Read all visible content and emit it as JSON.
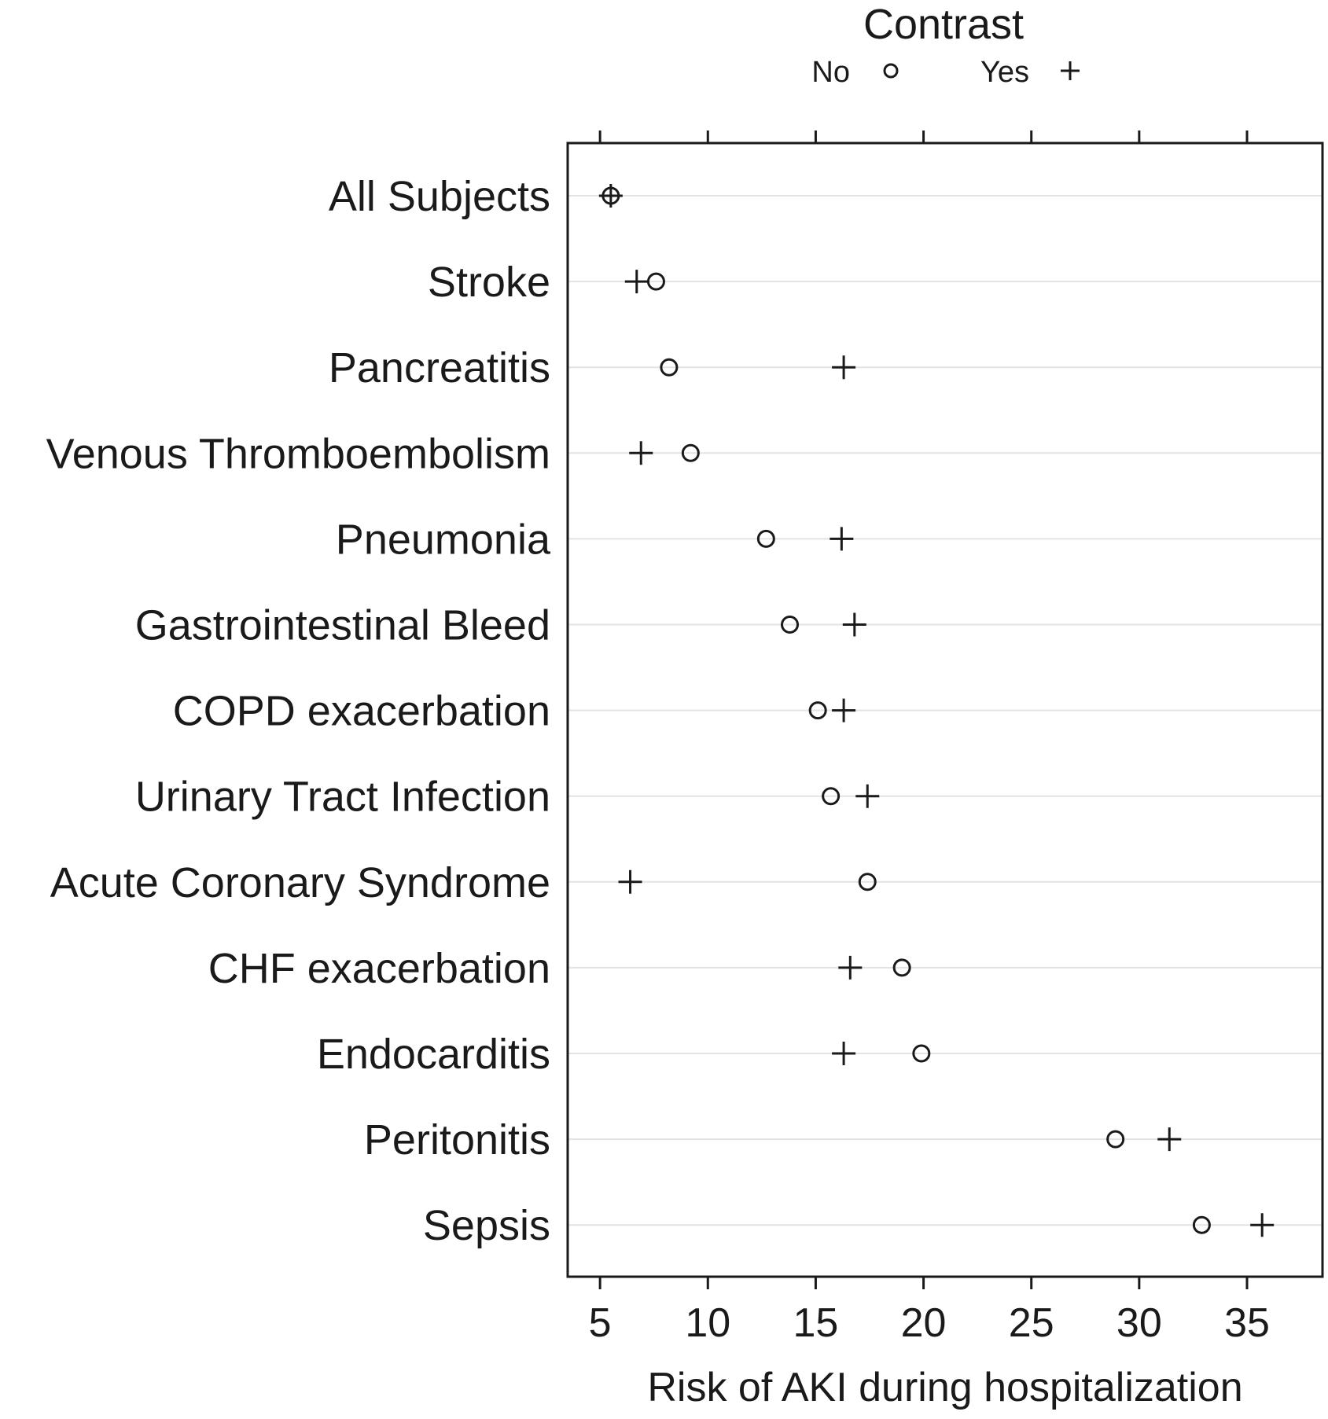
{
  "chart_data": {
    "type": "scatter",
    "subtype": "dot-plot",
    "title": "",
    "xlabel": "Risk of AKI during hospitalization",
    "ylabel": "",
    "xlim": [
      3.5,
      38.5
    ],
    "xticks": [
      5,
      10,
      15,
      20,
      25,
      30,
      35
    ],
    "grid": true,
    "legend": {
      "title": "Contrast",
      "position": "top-center",
      "entries": [
        {
          "label": "No",
          "symbol": "circle"
        },
        {
          "label": "Yes",
          "symbol": "plus"
        }
      ]
    },
    "categories": [
      "All Subjects",
      "Stroke",
      "Pancreatitis",
      "Venous Thromboembolism",
      "Pneumonia",
      "Gastrointestinal Bleed",
      "COPD exacerbation",
      "Urinary Tract Infection",
      "Acute Coronary Syndrome",
      "CHF exacerbation",
      "Endocarditis",
      "Peritonitis",
      "Sepsis"
    ],
    "series": [
      {
        "name": "No",
        "symbol": "circle",
        "values": [
          5.5,
          7.6,
          8.2,
          9.2,
          12.7,
          13.8,
          15.1,
          15.7,
          17.4,
          19.0,
          19.9,
          28.9,
          32.9
        ]
      },
      {
        "name": "Yes",
        "symbol": "plus",
        "values": [
          5.5,
          6.7,
          16.3,
          6.9,
          16.2,
          16.8,
          16.3,
          17.4,
          6.4,
          16.6,
          16.3,
          31.4,
          35.7
        ]
      }
    ]
  }
}
